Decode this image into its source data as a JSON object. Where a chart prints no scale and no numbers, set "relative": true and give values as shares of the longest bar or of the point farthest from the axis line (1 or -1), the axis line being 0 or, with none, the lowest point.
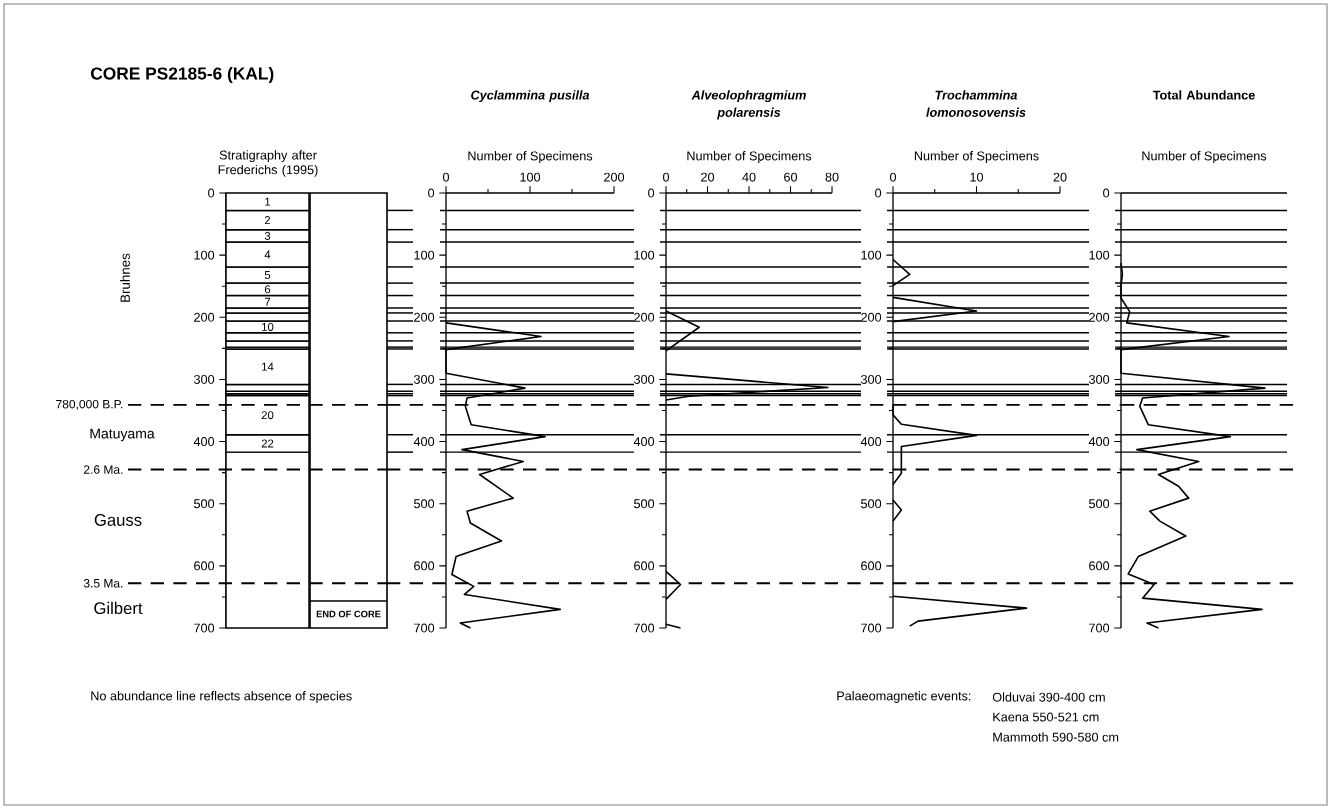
{
  "chart_data": [
    {
      "type": "bar",
      "stacked": true,
      "title": "CORE PS2185-6 (KAL)",
      "subtitle": "Stratigraphy after Frederichs (1995)",
      "categories": [
        null
      ],
      "ylim": [
        700,
        0
      ],
      "yticks": [
        0,
        {
          "value": 50,
          "label": null
        },
        100,
        {
          "value": 150,
          "label": null
        },
        200,
        {
          "value": 250,
          "label": null
        },
        300,
        {
          "value": 350,
          "label": null
        },
        400,
        {
          "value": 450,
          "label": null
        },
        500,
        {
          "value": 550,
          "label": null
        },
        600,
        {
          "value": 650,
          "label": null
        },
        700
      ],
      "series": [
        {
          "name": "1",
          "color": "#ffffff",
          "values": [
            28
          ]
        },
        {
          "name": "2",
          "color": "#ffffff",
          "values": [
            31
          ]
        },
        {
          "name": "3",
          "color": "#ffffff",
          "values": [
            20
          ]
        },
        {
          "name": "4",
          "color": "#ffffff",
          "values": [
            40
          ]
        },
        {
          "name": "5",
          "color": "#ffffff",
          "values": [
            26
          ]
        },
        {
          "name": "6",
          "color": "#ffffff",
          "values": [
            20
          ]
        },
        {
          "name": "7",
          "color": "#ffffff",
          "values": [
            20
          ]
        },
        {
          "color": "#ffffff",
          "values": [
            8
          ]
        },
        {
          "color": "#ffffff",
          "values": [
            13
          ]
        },
        {
          "name": "10",
          "color": "#ffffff",
          "values": [
            19
          ]
        },
        {
          "color": "#ffffff",
          "values": [
            13
          ]
        },
        {
          "color": "#ffffff",
          "values": [
            10
          ]
        },
        {
          "color": "#ffffff",
          "values": [
            3
          ]
        },
        {
          "name": "14",
          "color": "#ffffff",
          "values": [
            57
          ]
        },
        {
          "color": "#ffffff",
          "values": [
            11
          ]
        },
        {
          "color": "#ffffff",
          "values": [
            4
          ]
        },
        {
          "color": "#ffffff",
          "values": [
            3
          ]
        },
        {
          "name": "20",
          "color": "#ffffff",
          "values": [
            63
          ]
        },
        {
          "name": "22",
          "color": "#ffffff",
          "values": [
            28
          ]
        },
        {
          "color": "#ffffff",
          "values": [
            283
          ]
        }
      ],
      "ref_lines": [
        {
          "axis": "y",
          "value": 341,
          "line_style": "dashed",
          "label": "780,000 B.P."
        },
        {
          "axis": "y",
          "value": 445,
          "line_style": "dashed",
          "label": "2.6 Ma."
        },
        {
          "axis": "y",
          "value": 628,
          "line_style": "dashed",
          "label": "3.5 Ma."
        }
      ],
      "annotations": [
        "Bruhnes",
        "Matuyama",
        "Gauss",
        "Gilbert",
        "No abundance line reflects absence of species",
        "Palaeomagnetic events:",
        "Olduvai 390-400 cm",
        "Kaena 550-521 cm",
        "Mammoth 590-580 cm",
        "END OF CORE"
      ]
    },
    {
      "type": "line",
      "orientation": "horizontal",
      "title": "Cyclammina pusilla",
      "xlabel": "Number of Specimens",
      "color": "#000000",
      "xlim": [
        0,
        200
      ],
      "xticks": [
        0,
        {
          "value": 50,
          "label": null
        },
        100,
        {
          "value": 150,
          "label": null
        },
        200
      ],
      "ylim": [
        700,
        0
      ],
      "yticks": [
        0,
        {
          "value": 50,
          "label": null
        },
        100,
        {
          "value": 150,
          "label": null
        },
        200,
        {
          "value": 250,
          "label": null
        },
        300,
        {
          "value": 350,
          "label": null
        },
        400,
        {
          "value": 450,
          "label": null
        },
        500,
        {
          "value": 550,
          "label": null
        },
        600,
        {
          "value": 650,
          "label": null
        },
        700
      ],
      "x": [
        209,
        231,
        252,
        290,
        314,
        330,
        343,
        373,
        392,
        413,
        432,
        453,
        491,
        512,
        531,
        560,
        585,
        614,
        633,
        646,
        670,
        692,
        700
      ],
      "values": [
        0,
        113,
        0,
        0,
        94,
        25,
        23,
        30,
        118,
        19,
        92,
        40,
        80,
        25,
        29,
        66,
        12,
        7,
        33,
        22,
        136,
        17,
        29
      ],
      "ref_lines": [
        {
          "axis": "y",
          "value": 28
        },
        {
          "axis": "y",
          "value": 59
        },
        {
          "axis": "y",
          "value": 79
        },
        {
          "axis": "y",
          "value": 119
        },
        {
          "axis": "y",
          "value": 145
        },
        {
          "axis": "y",
          "value": 165
        },
        {
          "axis": "y",
          "value": 185
        },
        {
          "axis": "y",
          "value": 193
        },
        {
          "axis": "y",
          "value": 206
        },
        {
          "axis": "y",
          "value": 225
        },
        {
          "axis": "y",
          "value": 238
        },
        {
          "axis": "y",
          "value": 248
        },
        {
          "axis": "y",
          "value": 251
        },
        {
          "axis": "y",
          "value": 308
        },
        {
          "axis": "y",
          "value": 319
        },
        {
          "axis": "y",
          "value": 323
        },
        {
          "axis": "y",
          "value": 326
        },
        {
          "axis": "y",
          "value": 389
        },
        {
          "axis": "y",
          "value": 417
        },
        {
          "axis": "y",
          "value": 341,
          "line_style": "dashed"
        },
        {
          "axis": "y",
          "value": 445,
          "line_style": "dashed"
        },
        {
          "axis": "y",
          "value": 628,
          "line_style": "dashed"
        }
      ]
    },
    {
      "type": "line",
      "orientation": "horizontal",
      "title": "Alveolophragmium polarensis",
      "xlabel": "Number of Specimens",
      "color": "#000000",
      "xlim": [
        0,
        80
      ],
      "xticks": [
        0,
        {
          "value": 10,
          "label": null
        },
        20,
        {
          "value": 30,
          "label": null
        },
        40,
        {
          "value": 50,
          "label": null
        },
        60,
        {
          "value": 70,
          "label": null
        },
        80
      ],
      "ylim": [
        700,
        0
      ],
      "yticks": [
        0,
        {
          "value": 50,
          "label": null
        },
        100,
        {
          "value": 150,
          "label": null
        },
        200,
        {
          "value": 250,
          "label": null
        },
        300,
        {
          "value": 350,
          "label": null
        },
        400,
        {
          "value": 450,
          "label": null
        },
        500,
        {
          "value": 550,
          "label": null
        },
        600,
        {
          "value": 650,
          "label": null
        },
        700
      ],
      "x": [
        190,
        216,
        254,
        272,
        291,
        313,
        327,
        333,
        470,
        609,
        630,
        654,
        674,
        694,
        700
      ],
      "values": [
        0,
        16,
        0,
        null,
        0,
        78,
        11,
        0,
        null,
        0,
        7,
        0,
        null,
        0,
        7
      ],
      "ref_lines": [
        {
          "axis": "y",
          "value": 28
        },
        {
          "axis": "y",
          "value": 59
        },
        {
          "axis": "y",
          "value": 79
        },
        {
          "axis": "y",
          "value": 119
        },
        {
          "axis": "y",
          "value": 145
        },
        {
          "axis": "y",
          "value": 165
        },
        {
          "axis": "y",
          "value": 185
        },
        {
          "axis": "y",
          "value": 193
        },
        {
          "axis": "y",
          "value": 206
        },
        {
          "axis": "y",
          "value": 225
        },
        {
          "axis": "y",
          "value": 238
        },
        {
          "axis": "y",
          "value": 248
        },
        {
          "axis": "y",
          "value": 251
        },
        {
          "axis": "y",
          "value": 308
        },
        {
          "axis": "y",
          "value": 319
        },
        {
          "axis": "y",
          "value": 323
        },
        {
          "axis": "y",
          "value": 326
        },
        {
          "axis": "y",
          "value": 389
        },
        {
          "axis": "y",
          "value": 417
        },
        {
          "axis": "y",
          "value": 341,
          "line_style": "dashed"
        },
        {
          "axis": "y",
          "value": 445,
          "line_style": "dashed"
        },
        {
          "axis": "y",
          "value": 628,
          "line_style": "dashed"
        }
      ]
    },
    {
      "type": "line",
      "orientation": "horizontal",
      "title": "Trochammina lomonosovensis",
      "xlabel": "Number of Specimens",
      "color": "#000000",
      "xlim": [
        0,
        20
      ],
      "xticks": [
        0,
        {
          "value": 5,
          "label": null
        },
        10,
        {
          "value": 15,
          "label": null
        },
        20
      ],
      "ylim": [
        700,
        0
      ],
      "yticks": [
        0,
        {
          "value": 50,
          "label": null
        },
        100,
        {
          "value": 150,
          "label": null
        },
        200,
        {
          "value": 250,
          "label": null
        },
        300,
        {
          "value": 350,
          "label": null
        },
        400,
        {
          "value": 450,
          "label": null
        },
        500,
        {
          "value": 550,
          "label": null
        },
        600,
        {
          "value": 650,
          "label": null
        },
        700
      ],
      "x": [
        107,
        131,
        149,
        158,
        168,
        190,
        207,
        270,
        341,
        357,
        372,
        390,
        408,
        451,
        469,
        481,
        494,
        510,
        528,
        588,
        649,
        668,
        689,
        697
      ],
      "values": [
        0,
        2,
        0,
        null,
        0,
        10,
        0,
        null,
        0,
        0,
        1,
        10,
        1,
        1,
        0,
        null,
        0,
        1,
        0,
        null,
        0,
        16,
        3,
        2
      ],
      "ref_lines": [
        {
          "axis": "y",
          "value": 28
        },
        {
          "axis": "y",
          "value": 59
        },
        {
          "axis": "y",
          "value": 79
        },
        {
          "axis": "y",
          "value": 119
        },
        {
          "axis": "y",
          "value": 145
        },
        {
          "axis": "y",
          "value": 165
        },
        {
          "axis": "y",
          "value": 185
        },
        {
          "axis": "y",
          "value": 193
        },
        {
          "axis": "y",
          "value": 206
        },
        {
          "axis": "y",
          "value": 225
        },
        {
          "axis": "y",
          "value": 238
        },
        {
          "axis": "y",
          "value": 248
        },
        {
          "axis": "y",
          "value": 251
        },
        {
          "axis": "y",
          "value": 308
        },
        {
          "axis": "y",
          "value": 319
        },
        {
          "axis": "y",
          "value": 323
        },
        {
          "axis": "y",
          "value": 326
        },
        {
          "axis": "y",
          "value": 389
        },
        {
          "axis": "y",
          "value": 417
        },
        {
          "axis": "y",
          "value": 341,
          "line_style": "dashed"
        },
        {
          "axis": "y",
          "value": 445,
          "line_style": "dashed"
        },
        {
          "axis": "y",
          "value": 628,
          "line_style": "dashed"
        }
      ]
    },
    {
      "type": "line",
      "orientation": "horizontal",
      "title": "Total Abundance",
      "xlabel": "Number of Specimens",
      "color": "#000000",
      "relative": true,
      "ylim": [
        700,
        0
      ],
      "yticks": [
        0,
        {
          "value": 50,
          "label": null
        },
        100,
        {
          "value": 150,
          "label": null
        },
        200,
        {
          "value": 250,
          "label": null
        },
        300,
        {
          "value": 350,
          "label": null
        },
        400,
        {
          "value": 450,
          "label": null
        },
        500,
        {
          "value": 550,
          "label": null
        },
        600,
        {
          "value": 650,
          "label": null
        },
        700
      ],
      "x": [
        113,
        131,
        148,
        169,
        191,
        209,
        231,
        252,
        290,
        314,
        330,
        343,
        373,
        392,
        413,
        432,
        453,
        472,
        491,
        512,
        528,
        552,
        585,
        613,
        630,
        652,
        670,
        692,
        700
      ],
      "values": [
        0,
        0.01,
        0,
        0,
        0.06,
        0.04,
        0.75,
        0,
        0,
        1,
        0.15,
        0.13,
        0.19,
        0.76,
        0.11,
        0.54,
        0.26,
        0.4,
        0.47,
        0.2,
        0.27,
        0.45,
        0.12,
        0.05,
        0.23,
        0.15,
        0.98,
        0.18,
        0.26
      ],
      "ref_lines": [
        {
          "axis": "y",
          "value": 28
        },
        {
          "axis": "y",
          "value": 59
        },
        {
          "axis": "y",
          "value": 79
        },
        {
          "axis": "y",
          "value": 119
        },
        {
          "axis": "y",
          "value": 145
        },
        {
          "axis": "y",
          "value": 165
        },
        {
          "axis": "y",
          "value": 185
        },
        {
          "axis": "y",
          "value": 193
        },
        {
          "axis": "y",
          "value": 206
        },
        {
          "axis": "y",
          "value": 225
        },
        {
          "axis": "y",
          "value": 238
        },
        {
          "axis": "y",
          "value": 248
        },
        {
          "axis": "y",
          "value": 251
        },
        {
          "axis": "y",
          "value": 308
        },
        {
          "axis": "y",
          "value": 319
        },
        {
          "axis": "y",
          "value": 323
        },
        {
          "axis": "y",
          "value": 326
        },
        {
          "axis": "y",
          "value": 389
        },
        {
          "axis": "y",
          "value": 417
        },
        {
          "axis": "y",
          "value": 341,
          "line_style": "dashed"
        },
        {
          "axis": "y",
          "value": 445,
          "line_style": "dashed"
        },
        {
          "axis": "y",
          "value": 628,
          "line_style": "dashed"
        }
      ]
    }
  ]
}
